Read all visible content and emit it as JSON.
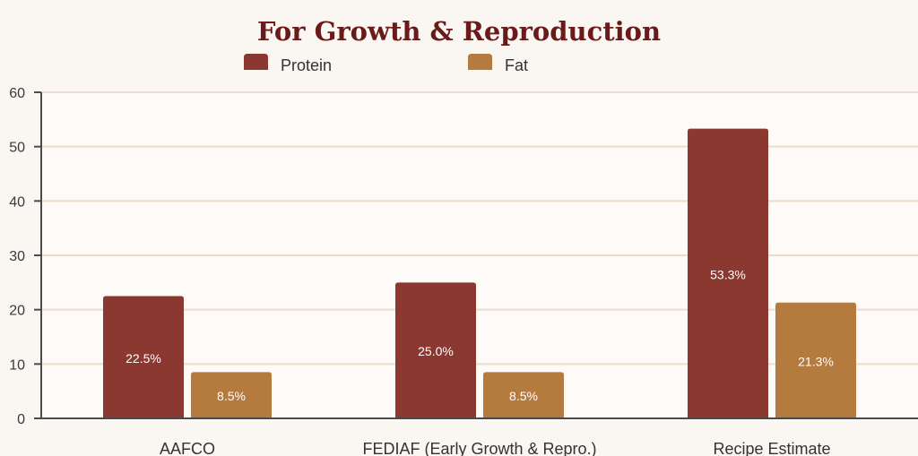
{
  "chart_data": {
    "type": "bar",
    "title": "For Growth & Reproduction",
    "categories": [
      "AAFCO",
      "FEDIAF (Early Growth & Repro.)",
      "Recipe Estimate"
    ],
    "series": [
      {
        "name": "Protein",
        "values": [
          22.5,
          25.0,
          53.3
        ],
        "labels": [
          "22.5%",
          "25.0%",
          "53.3%"
        ],
        "color": "#8b3830"
      },
      {
        "name": "Fat",
        "values": [
          8.5,
          8.5,
          21.3
        ],
        "labels": [
          "8.5%",
          "8.5%",
          "21.3%"
        ],
        "color": "#b57b3e"
      }
    ],
    "ylim": [
      0,
      60
    ],
    "yticks": [
      "0",
      "10",
      "20",
      "30",
      "40",
      "50",
      "60"
    ],
    "xlabel": "",
    "ylabel": "",
    "grid": true,
    "legend_position": "top"
  }
}
